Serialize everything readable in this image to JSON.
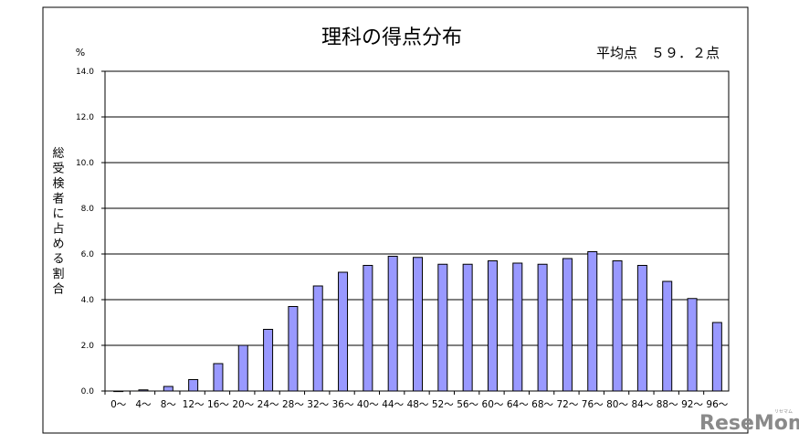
{
  "chart_data": {
    "type": "bar",
    "title": "理科の得点分布",
    "average_label": "平均点　５９．２点",
    "y_unit": "%",
    "ylabel": "総受検者に占める割合",
    "ylim": [
      0,
      14
    ],
    "y_ticks": [
      "0.0",
      "2.0",
      "4.0",
      "6.0",
      "8.0",
      "10.0",
      "12.0",
      "14.0"
    ],
    "grid": true,
    "bar_color": "#9999ff",
    "categories": [
      "0～",
      "4～",
      "8～",
      "12～",
      "16～",
      "20～",
      "24～",
      "28～",
      "32～",
      "36～",
      "40～",
      "44～",
      "48～",
      "52～",
      "56～",
      "60～",
      "64～",
      "68～",
      "72～",
      "76～",
      "80～",
      "84～",
      "88～",
      "92～",
      "96～"
    ],
    "values": [
      0.0,
      0.05,
      0.2,
      0.5,
      1.2,
      2.0,
      2.7,
      3.7,
      4.6,
      5.2,
      5.5,
      5.9,
      5.85,
      5.55,
      5.55,
      5.7,
      5.6,
      5.55,
      5.8,
      6.1,
      5.7,
      5.5,
      4.8,
      4.05,
      3.0
    ]
  },
  "watermark": {
    "text": "ReseMom",
    "small": "リセマム"
  }
}
